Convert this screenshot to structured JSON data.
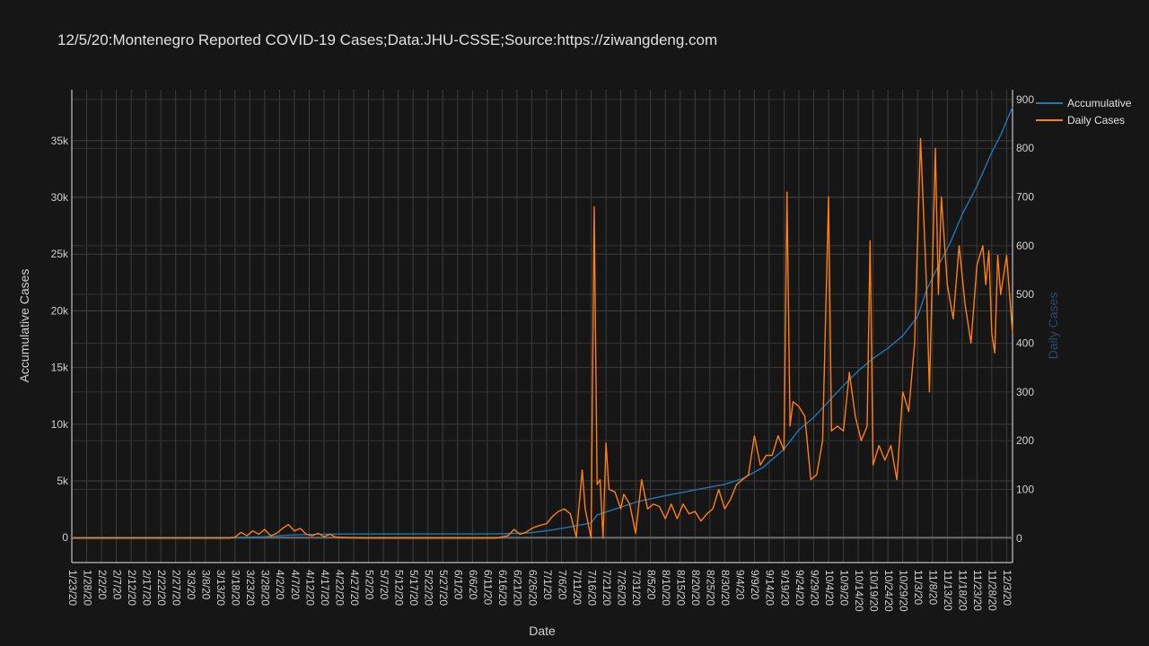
{
  "chart_data": {
    "type": "line",
    "title": "12/5/20:Montenegro Reported COVID-19 Cases;Data:JHU-CSSE;Source:https://ziwangdeng.com",
    "xlabel": "Date",
    "ylabel_left": "Accumulative Cases",
    "ylabel_right": "Daily Cases",
    "x_ticks": [
      "1/23/20",
      "1/28/20",
      "2/2/20",
      "2/7/20",
      "2/12/20",
      "2/17/20",
      "2/22/20",
      "2/27/20",
      "3/3/20",
      "3/8/20",
      "3/13/20",
      "3/18/20",
      "3/23/20",
      "3/28/20",
      "4/2/20",
      "4/7/20",
      "4/12/20",
      "4/17/20",
      "4/22/20",
      "4/27/20",
      "5/2/20",
      "5/7/20",
      "5/12/20",
      "5/17/20",
      "5/22/20",
      "5/27/20",
      "6/1/20",
      "6/6/20",
      "6/11/20",
      "6/16/20",
      "6/21/20",
      "6/26/20",
      "7/1/20",
      "7/6/20",
      "7/11/20",
      "7/16/20",
      "7/21/20",
      "7/26/20",
      "7/31/20",
      "8/5/20",
      "8/10/20",
      "8/15/20",
      "8/20/20",
      "8/25/20",
      "8/30/20",
      "9/4/20",
      "9/9/20",
      "9/14/20",
      "9/19/20",
      "9/24/20",
      "9/29/20",
      "10/4/20",
      "10/9/20",
      "10/14/20",
      "10/19/20",
      "10/24/20",
      "10/29/20",
      "11/3/20",
      "11/8/20",
      "11/13/20",
      "11/18/20",
      "11/23/20",
      "11/28/20",
      "12/3/20"
    ],
    "y_left_ticks": [
      "0",
      "5k",
      "10k",
      "15k",
      "20k",
      "25k",
      "30k",
      "35k"
    ],
    "y_left_range": [
      -2200,
      39500
    ],
    "y_right_ticks": [
      "0",
      "100",
      "200",
      "300",
      "400",
      "500",
      "600",
      "700",
      "800",
      "900"
    ],
    "y_right_range": [
      -50,
      920
    ],
    "x_range": [
      "1/23/20",
      "12/5/20"
    ],
    "grid": true,
    "legend_position": "top-right",
    "series": [
      {
        "name": "Accumulative",
        "axis": "left",
        "color": "#1f77b4",
        "points": [
          [
            "1/23/20",
            0
          ],
          [
            "3/16/20",
            0
          ],
          [
            "3/20/20",
            20
          ],
          [
            "3/28/20",
            80
          ],
          [
            "4/5/20",
            220
          ],
          [
            "4/15/20",
            300
          ],
          [
            "4/25/20",
            320
          ],
          [
            "5/20/20",
            322
          ],
          [
            "6/15/20",
            330
          ],
          [
            "6/25/20",
            420
          ],
          [
            "7/1/20",
            600
          ],
          [
            "7/8/20",
            900
          ],
          [
            "7/16/20",
            1300
          ],
          [
            "7/18/20",
            2000
          ],
          [
            "7/25/20",
            2600
          ],
          [
            "8/1/20",
            3200
          ],
          [
            "8/10/20",
            3700
          ],
          [
            "8/20/20",
            4200
          ],
          [
            "8/30/20",
            4700
          ],
          [
            "9/5/20",
            5200
          ],
          [
            "9/12/20",
            6200
          ],
          [
            "9/19/20",
            7800
          ],
          [
            "9/24/20",
            9500
          ],
          [
            "9/29/20",
            10600
          ],
          [
            "10/4/20",
            12000
          ],
          [
            "10/9/20",
            13400
          ],
          [
            "10/14/20",
            14700
          ],
          [
            "10/19/20",
            15800
          ],
          [
            "10/24/20",
            16700
          ],
          [
            "10/29/20",
            17800
          ],
          [
            "11/3/20",
            19500
          ],
          [
            "11/6/20",
            21800
          ],
          [
            "11/10/20",
            24000
          ],
          [
            "11/14/20",
            26000
          ],
          [
            "11/18/20",
            28500
          ],
          [
            "11/23/20",
            31000
          ],
          [
            "11/28/20",
            34000
          ],
          [
            "12/1/20",
            35500
          ],
          [
            "12/5/20",
            38000
          ]
        ]
      },
      {
        "name": "Daily Cases",
        "axis": "right",
        "color": "#ff7f0e",
        "points": [
          [
            "1/23/20",
            0
          ],
          [
            "3/16/20",
            0
          ],
          [
            "3/18/20",
            2
          ],
          [
            "3/20/20",
            12
          ],
          [
            "3/22/20",
            5
          ],
          [
            "3/24/20",
            15
          ],
          [
            "3/26/20",
            8
          ],
          [
            "3/28/20",
            18
          ],
          [
            "3/30/20",
            5
          ],
          [
            "4/1/20",
            10
          ],
          [
            "4/3/20",
            20
          ],
          [
            "4/5/20",
            28
          ],
          [
            "4/7/20",
            15
          ],
          [
            "4/9/20",
            20
          ],
          [
            "4/11/20",
            8
          ],
          [
            "4/13/20",
            5
          ],
          [
            "4/15/20",
            10
          ],
          [
            "4/17/20",
            3
          ],
          [
            "4/19/20",
            8
          ],
          [
            "4/21/20",
            2
          ],
          [
            "4/25/20",
            1
          ],
          [
            "5/1/20",
            0
          ],
          [
            "6/14/20",
            0
          ],
          [
            "6/18/20",
            5
          ],
          [
            "6/20/20",
            18
          ],
          [
            "6/22/20",
            8
          ],
          [
            "6/24/20",
            12
          ],
          [
            "6/26/20",
            20
          ],
          [
            "6/28/20",
            25
          ],
          [
            "7/1/20",
            30
          ],
          [
            "7/3/20",
            45
          ],
          [
            "7/5/20",
            55
          ],
          [
            "7/7/20",
            60
          ],
          [
            "7/9/20",
            50
          ],
          [
            "7/11/20",
            2
          ],
          [
            "7/13/20",
            140
          ],
          [
            "7/14/20",
            60
          ],
          [
            "7/16/20",
            0
          ],
          [
            "7/17/20",
            680
          ],
          [
            "7/18/20",
            110
          ],
          [
            "7/19/20",
            120
          ],
          [
            "7/20/20",
            0
          ],
          [
            "7/21/20",
            195
          ],
          [
            "7/22/20",
            100
          ],
          [
            "7/24/20",
            95
          ],
          [
            "7/26/20",
            60
          ],
          [
            "7/27/20",
            90
          ],
          [
            "7/29/20",
            70
          ],
          [
            "7/31/20",
            10
          ],
          [
            "8/2/20",
            120
          ],
          [
            "8/4/20",
            60
          ],
          [
            "8/6/20",
            70
          ],
          [
            "8/8/20",
            65
          ],
          [
            "8/10/20",
            40
          ],
          [
            "8/12/20",
            70
          ],
          [
            "8/14/20",
            40
          ],
          [
            "8/16/20",
            70
          ],
          [
            "8/18/20",
            50
          ],
          [
            "8/20/20",
            55
          ],
          [
            "8/22/20",
            35
          ],
          [
            "8/24/20",
            50
          ],
          [
            "8/26/20",
            60
          ],
          [
            "8/28/20",
            100
          ],
          [
            "8/30/20",
            60
          ],
          [
            "9/1/20",
            80
          ],
          [
            "9/3/20",
            110
          ],
          [
            "9/5/20",
            120
          ],
          [
            "9/7/20",
            130
          ],
          [
            "9/9/20",
            210
          ],
          [
            "9/11/20",
            150
          ],
          [
            "9/13/20",
            170
          ],
          [
            "9/15/20",
            170
          ],
          [
            "9/17/20",
            210
          ],
          [
            "9/19/20",
            180
          ],
          [
            "9/20/20",
            710
          ],
          [
            "9/21/20",
            230
          ],
          [
            "9/22/20",
            280
          ],
          [
            "9/24/20",
            270
          ],
          [
            "9/26/20",
            250
          ],
          [
            "9/28/20",
            120
          ],
          [
            "9/30/20",
            130
          ],
          [
            "10/2/20",
            200
          ],
          [
            "10/4/20",
            700
          ],
          [
            "10/5/20",
            220
          ],
          [
            "10/7/20",
            230
          ],
          [
            "10/9/20",
            220
          ],
          [
            "10/11/20",
            340
          ],
          [
            "10/13/20",
            250
          ],
          [
            "10/15/20",
            200
          ],
          [
            "10/17/20",
            230
          ],
          [
            "10/18/20",
            610
          ],
          [
            "10/19/20",
            150
          ],
          [
            "10/21/20",
            190
          ],
          [
            "10/23/20",
            160
          ],
          [
            "10/25/20",
            190
          ],
          [
            "10/27/20",
            120
          ],
          [
            "10/29/20",
            300
          ],
          [
            "10/31/20",
            260
          ],
          [
            "11/2/20",
            400
          ],
          [
            "11/4/20",
            820
          ],
          [
            "11/6/20",
            520
          ],
          [
            "11/7/20",
            300
          ],
          [
            "11/9/20",
            800
          ],
          [
            "11/10/20",
            500
          ],
          [
            "11/11/20",
            700
          ],
          [
            "11/13/20",
            520
          ],
          [
            "11/15/20",
            450
          ],
          [
            "11/17/20",
            600
          ],
          [
            "11/19/20",
            480
          ],
          [
            "11/21/20",
            400
          ],
          [
            "11/23/20",
            560
          ],
          [
            "11/25/20",
            600
          ],
          [
            "11/26/20",
            520
          ],
          [
            "11/27/20",
            590
          ],
          [
            "11/28/20",
            420
          ],
          [
            "11/29/20",
            380
          ],
          [
            "11/30/20",
            580
          ],
          [
            "12/1/20",
            500
          ],
          [
            "12/3/20",
            580
          ],
          [
            "12/5/20",
            420
          ]
        ]
      }
    ]
  }
}
